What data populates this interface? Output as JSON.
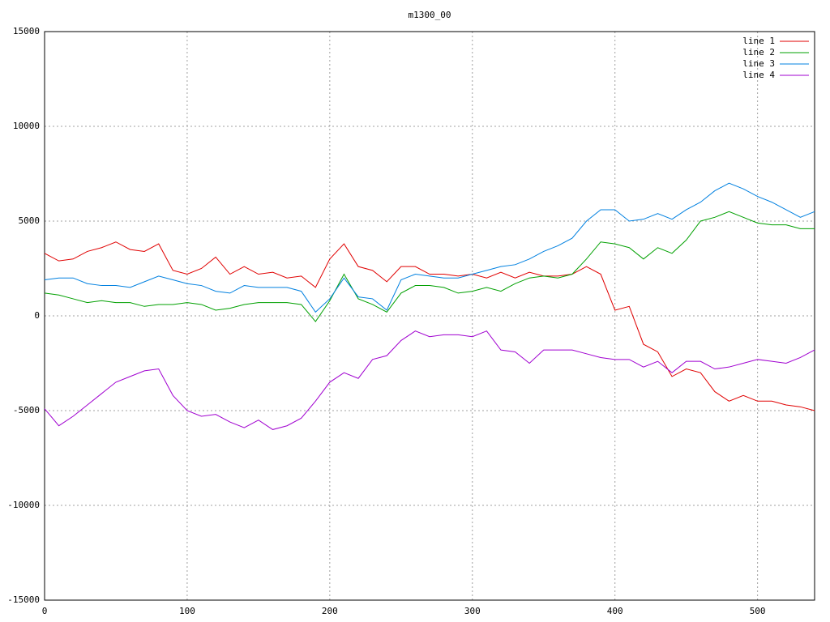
{
  "chart_data": {
    "type": "line",
    "title": "m1300_00",
    "x": [
      0,
      10,
      20,
      30,
      40,
      50,
      60,
      70,
      80,
      90,
      100,
      110,
      120,
      130,
      140,
      150,
      160,
      170,
      180,
      190,
      200,
      210,
      220,
      230,
      240,
      250,
      260,
      270,
      280,
      290,
      300,
      310,
      320,
      330,
      340,
      350,
      360,
      370,
      380,
      390,
      400,
      410,
      420,
      430,
      440,
      450,
      460,
      470,
      480,
      490,
      500,
      510,
      520,
      530,
      540
    ],
    "series": [
      {
        "name": "line 1",
        "color": "#e00000",
        "values": [
          3300,
          2900,
          3000,
          3400,
          3600,
          3900,
          3500,
          3400,
          3800,
          2400,
          2200,
          2500,
          3100,
          2200,
          2600,
          2200,
          2300,
          2000,
          2100,
          1500,
          3000,
          3800,
          2600,
          2400,
          1800,
          2600,
          2600,
          2200,
          2200,
          2100,
          2200,
          2000,
          2300,
          2000,
          2300,
          2100,
          2100,
          2200,
          2600,
          2200,
          300,
          500,
          -1500,
          -1900,
          -3200,
          -2800,
          -3000,
          -4000,
          -4500,
          -4200,
          -4500,
          -4500,
          -4700,
          -4800,
          -5000
        ]
      },
      {
        "name": "line 2",
        "color": "#00a000",
        "values": [
          1200,
          1100,
          900,
          700,
          800,
          700,
          700,
          500,
          600,
          600,
          700,
          600,
          300,
          400,
          600,
          700,
          700,
          700,
          600,
          -300,
          800,
          2200,
          900,
          600,
          200,
          1200,
          1600,
          1600,
          1500,
          1200,
          1300,
          1500,
          1300,
          1700,
          2000,
          2100,
          2000,
          2200,
          3000,
          3900,
          3800,
          3600,
          3000,
          3600,
          3300,
          4000,
          5000,
          5200,
          5500,
          5200,
          4900,
          4800,
          4800,
          4600,
          4600
        ]
      },
      {
        "name": "line 3",
        "color": "#0080e0",
        "values": [
          1900,
          2000,
          2000,
          1700,
          1600,
          1600,
          1500,
          1800,
          2100,
          1900,
          1700,
          1600,
          1300,
          1200,
          1600,
          1500,
          1500,
          1500,
          1300,
          200,
          900,
          2000,
          1000,
          900,
          300,
          1900,
          2200,
          2100,
          2000,
          2000,
          2200,
          2400,
          2600,
          2700,
          3000,
          3400,
          3700,
          4100,
          5000,
          5600,
          5600,
          5000,
          5100,
          5400,
          5100,
          5600,
          6000,
          6600,
          7000,
          6700,
          6300,
          6000,
          5600,
          5200,
          5500
        ]
      },
      {
        "name": "line 4",
        "color": "#a000d0",
        "values": [
          -4900,
          -5800,
          -5300,
          -4700,
          -4100,
          -3500,
          -3200,
          -2900,
          -2800,
          -4200,
          -5000,
          -5300,
          -5200,
          -5600,
          -5900,
          -5500,
          -6000,
          -5800,
          -5400,
          -4500,
          -3500,
          -3000,
          -3300,
          -2300,
          -2100,
          -1300,
          -800,
          -1100,
          -1000,
          -1000,
          -1100,
          -800,
          -1800,
          -1900,
          -2500,
          -1800,
          -1800,
          -1800,
          -2000,
          -2200,
          -2300,
          -2300,
          -2700,
          -2400,
          -3000,
          -2400,
          -2400,
          -2800,
          -2700,
          -2500,
          -2300,
          -2400,
          -2500,
          -2200,
          -1800
        ]
      }
    ],
    "xlim": [
      0,
      540
    ],
    "xticks": [
      0,
      100,
      200,
      300,
      400,
      500
    ],
    "ylim": [
      -15000,
      15000
    ],
    "yticks": [
      -15000,
      -10000,
      -5000,
      0,
      5000,
      10000,
      15000
    ],
    "grid": true,
    "legend": "top-right"
  }
}
